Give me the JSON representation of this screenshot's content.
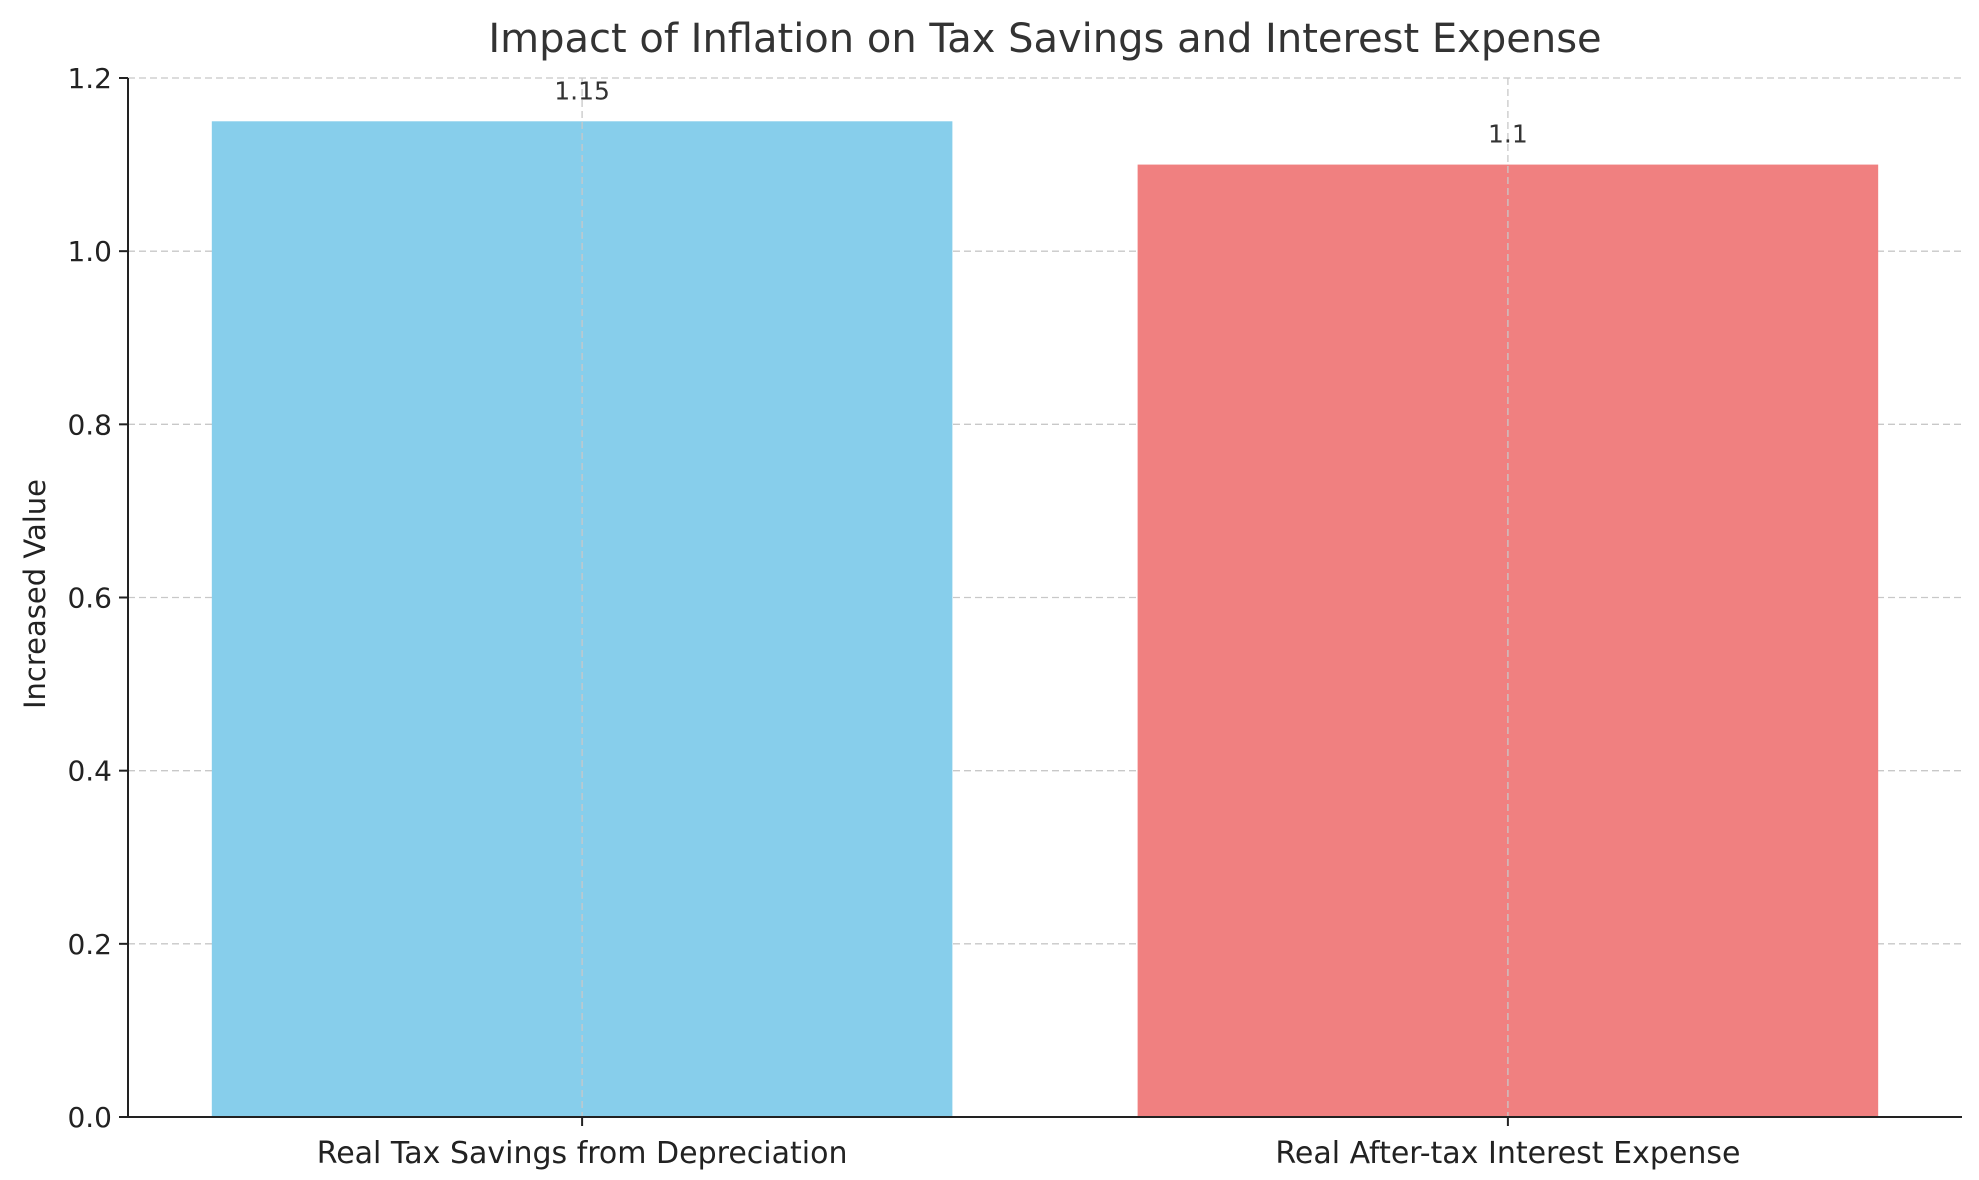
{
  "chart_data": {
    "type": "bar",
    "title": "Impact of Inflation on Tax Savings and Interest Expense",
    "xlabel": "",
    "ylabel": "Increased Value",
    "categories": [
      "Real Tax Savings from Depreciation",
      "Real After-tax Interest Expense"
    ],
    "values": [
      1.15,
      1.1
    ],
    "value_labels": [
      "1.15",
      "1.1"
    ],
    "colors": [
      "#87CEEB",
      "#F08080"
    ],
    "ylim": [
      0,
      1.2
    ],
    "yticks": [
      0.0,
      0.2,
      0.4,
      0.6,
      0.8,
      1.0,
      1.2
    ],
    "ytick_labels": [
      "0.0",
      "0.2",
      "0.4",
      "0.6",
      "0.8",
      "1.0",
      "1.2"
    ],
    "grid": true,
    "legend": "none"
  }
}
